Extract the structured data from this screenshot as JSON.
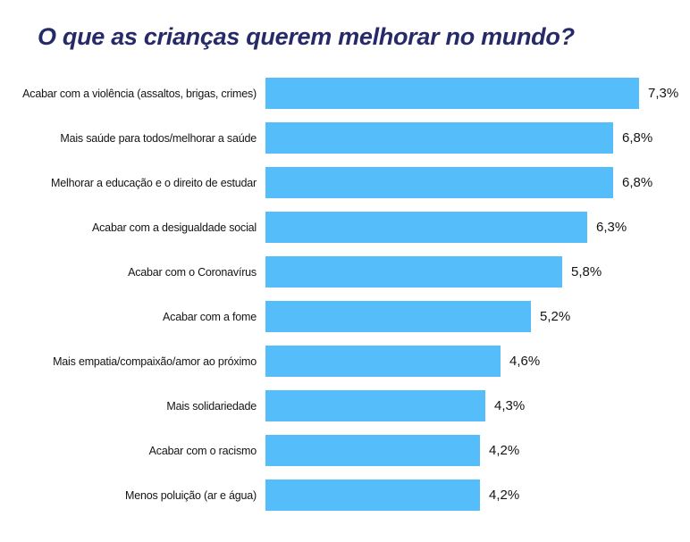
{
  "title": "O que as crianças querem melhorar no mundo?",
  "colors": {
    "bar": "#55BEFA",
    "title": "#262A68",
    "label": "#141414",
    "background": "#FFFFFF"
  },
  "chart_data": {
    "type": "bar",
    "orientation": "horizontal",
    "title": "O que as crianças querem melhorar no mundo?",
    "categories": [
      "Acabar com a violência (assaltos, brigas, crimes)",
      "Mais saúde para todos/melhorar a saúde",
      "Melhorar a educação e o direito de estudar",
      "Acabar com a desigualdade social",
      "Acabar com o Coronavírus",
      "Acabar com a fome",
      "Mais empatia/compaixão/amor ao próximo",
      "Mais solidariedade",
      "Acabar com o racismo",
      "Menos poluição (ar e água)"
    ],
    "values": [
      7.3,
      6.8,
      6.8,
      6.3,
      5.8,
      5.2,
      4.6,
      4.3,
      4.2,
      4.2
    ],
    "value_labels": [
      "7,3%",
      "6,8%",
      "6,8%",
      "6,3%",
      "5,8%",
      "5,2%",
      "4,6%",
      "4,3%",
      "4,2%",
      "4,2%"
    ],
    "unit": "%",
    "xlim": [
      0,
      7.3
    ],
    "grid": false,
    "legend": false,
    "axis_lines": false,
    "value_label_position": "right-of-bar",
    "category_label_position": "left-of-bar"
  }
}
